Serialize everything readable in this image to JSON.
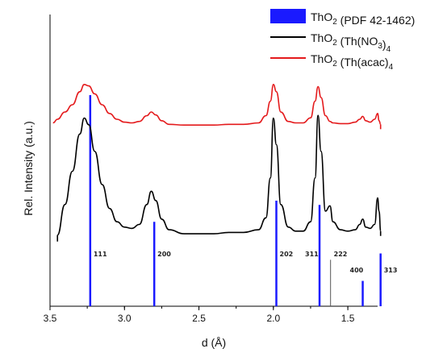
{
  "chart_data": {
    "type": "line",
    "xlabel": "d (Å)",
    "ylabel": "Rel. Intensity (a.u.)",
    "xlim": [
      3.5,
      1.3
    ],
    "x_reversed": true,
    "x_ticks": [
      "3.5",
      "3.0",
      "2.5",
      "2.0",
      "1.5"
    ],
    "x_tick_values": [
      3.5,
      3.0,
      2.5,
      2.0,
      1.5
    ],
    "grid": false,
    "legend_placement": "top-right",
    "series": [
      {
        "name": "ThO2 (PDF 42-1462)",
        "kind": "reference-bars",
        "color": "#1a1aff",
        "d": [
          3.23,
          2.8,
          1.98,
          1.69,
          1.616,
          1.4,
          1.28
        ],
        "rel_intensity": [
          100,
          40,
          50,
          48,
          22,
          12,
          25
        ],
        "hkl": [
          "111",
          "200",
          "202",
          "311",
          "222",
          "400",
          "313"
        ]
      },
      {
        "name": "ThO2 (Th(NO3)4)",
        "kind": "pattern",
        "color": "#000000",
        "d": [
          3.45,
          3.4,
          3.35,
          3.3,
          3.27,
          3.24,
          3.2,
          3.15,
          3.1,
          3.05,
          3.0,
          2.95,
          2.9,
          2.85,
          2.82,
          2.79,
          2.75,
          2.7,
          2.6,
          2.5,
          2.4,
          2.3,
          2.2,
          2.1,
          2.05,
          2.02,
          2.0,
          1.98,
          1.95,
          1.9,
          1.85,
          1.8,
          1.75,
          1.72,
          1.7,
          1.68,
          1.65,
          1.62,
          1.6,
          1.55,
          1.5,
          1.45,
          1.42,
          1.4,
          1.38,
          1.35,
          1.32,
          1.3,
          1.29,
          1.28
        ],
        "intensity": [
          0.02,
          0.25,
          0.5,
          0.78,
          0.9,
          0.85,
          0.65,
          0.4,
          0.22,
          0.12,
          0.08,
          0.07,
          0.1,
          0.25,
          0.35,
          0.28,
          0.14,
          0.06,
          0.03,
          0.03,
          0.03,
          0.04,
          0.04,
          0.06,
          0.15,
          0.45,
          0.9,
          0.7,
          0.25,
          0.08,
          0.05,
          0.05,
          0.12,
          0.45,
          0.92,
          0.65,
          0.2,
          0.24,
          0.12,
          0.06,
          0.05,
          0.06,
          0.1,
          0.14,
          0.08,
          0.07,
          0.1,
          0.3,
          0.2,
          0.05
        ]
      },
      {
        "name": "ThO2 (Th(acac)4)",
        "kind": "pattern",
        "color": "#e41a1c",
        "d": [
          3.48,
          3.45,
          3.4,
          3.35,
          3.3,
          3.27,
          3.24,
          3.2,
          3.15,
          3.1,
          3.05,
          3.0,
          2.95,
          2.9,
          2.85,
          2.82,
          2.79,
          2.75,
          2.7,
          2.6,
          2.5,
          2.4,
          2.3,
          2.2,
          2.1,
          2.05,
          2.02,
          2.0,
          1.98,
          1.95,
          1.9,
          1.85,
          1.8,
          1.75,
          1.72,
          1.7,
          1.68,
          1.65,
          1.62,
          1.6,
          1.55,
          1.5,
          1.45,
          1.42,
          1.4,
          1.38,
          1.35,
          1.32,
          1.3,
          1.29,
          1.28
        ],
        "intensity": [
          0.05,
          0.1,
          0.2,
          0.3,
          0.48,
          0.58,
          0.56,
          0.45,
          0.3,
          0.18,
          0.1,
          0.06,
          0.05,
          0.07,
          0.15,
          0.2,
          0.16,
          0.08,
          0.03,
          0.02,
          0.02,
          0.02,
          0.03,
          0.03,
          0.05,
          0.15,
          0.35,
          0.58,
          0.48,
          0.2,
          0.07,
          0.05,
          0.05,
          0.12,
          0.35,
          0.55,
          0.4,
          0.15,
          0.07,
          0.05,
          0.04,
          0.04,
          0.06,
          0.1,
          0.14,
          0.08,
          0.06,
          0.1,
          0.18,
          0.08,
          0.03
        ]
      }
    ]
  },
  "legend": {
    "items": [
      {
        "text": "ThO",
        "sub": "2",
        "rest": " (PDF 42-1462)"
      },
      {
        "text": "ThO",
        "sub": "2",
        "rest": " (Th(NO",
        "sub2": "3",
        "rest2": ")",
        "sub3": "4",
        "rest3": ""
      },
      {
        "text": "ThO",
        "sub": "2",
        "rest": " (Th(acac)",
        "sub2": "4",
        "rest2": "",
        "sub3": "",
        "rest3": ""
      }
    ]
  }
}
